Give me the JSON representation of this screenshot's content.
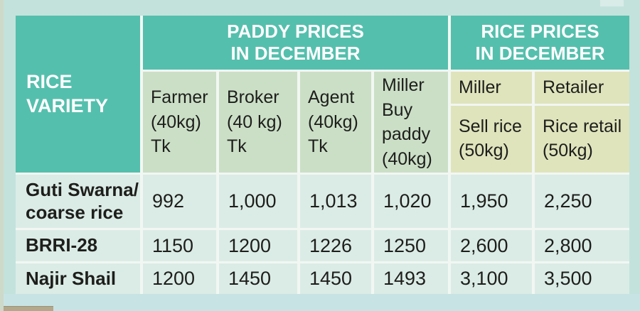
{
  "colors": {
    "page_bg": "#c3e2dc",
    "teal_header_bg": "#55bfad",
    "paddy_subheader_bg": "#cbdfc6",
    "rice_subheader_bg": "#dfe4bc",
    "data_cell_bg": "#dbece6",
    "grid_line": "#f2f7f3",
    "header_text": "#ffffff",
    "body_text": "#1e1e1c",
    "left_strip": "#cdd9c9",
    "tan_strip": "#b2a88b"
  },
  "table": {
    "corner_header": "RICE\nVARIETY",
    "groups": {
      "paddy": "PADDY PRICES\nIN DECEMBER",
      "rice": "RICE PRICES\nIN DECEMBER"
    },
    "paddy_columns": [
      "Farmer\n(40kg)\nTk",
      "Broker\n(40 kg)\nTk",
      "Agent\n(40kg)\nTk",
      "Miller\nBuy\npaddy\n(40kg)"
    ],
    "rice_columns": [
      {
        "role": "Miller",
        "detail": "Sell rice\n(50kg)"
      },
      {
        "role": "Retailer",
        "detail": "Rice retail\n(50kg)"
      }
    ],
    "rows": [
      {
        "variety": "Guti Swarna/\ncoarse rice",
        "values": [
          "992",
          "1,000",
          "1,013",
          "1,020",
          "1,950",
          "2,250"
        ]
      },
      {
        "variety": "BRRI-28",
        "values": [
          "1150",
          "1200",
          "1226",
          "1250",
          "2,600",
          "2,800"
        ]
      },
      {
        "variety": "Najir Shail",
        "values": [
          "1200",
          "1450",
          "1450",
          "1493",
          "3,100",
          "3,500"
        ]
      }
    ]
  },
  "chart_data": {
    "type": "table",
    "row_header": "RICE VARIETY",
    "column_groups": [
      {
        "label": "PADDY PRICES IN DECEMBER",
        "columns": [
          "Farmer (40kg) Tk",
          "Broker (40 kg) Tk",
          "Agent (40kg) Tk",
          "Miller Buy paddy (40kg)"
        ]
      },
      {
        "label": "RICE PRICES IN DECEMBER",
        "columns": [
          "Miller Sell rice (50kg)",
          "Retailer Rice retail (50kg)"
        ]
      }
    ],
    "rows": [
      {
        "variety": "Guti Swarna/ coarse rice",
        "values": [
          992,
          1000,
          1013,
          1020,
          1950,
          2250
        ]
      },
      {
        "variety": "BRRI-28",
        "values": [
          1150,
          1200,
          1226,
          1250,
          2600,
          2800
        ]
      },
      {
        "variety": "Najir Shail",
        "values": [
          1200,
          1450,
          1450,
          1493,
          3100,
          3500
        ]
      }
    ]
  }
}
